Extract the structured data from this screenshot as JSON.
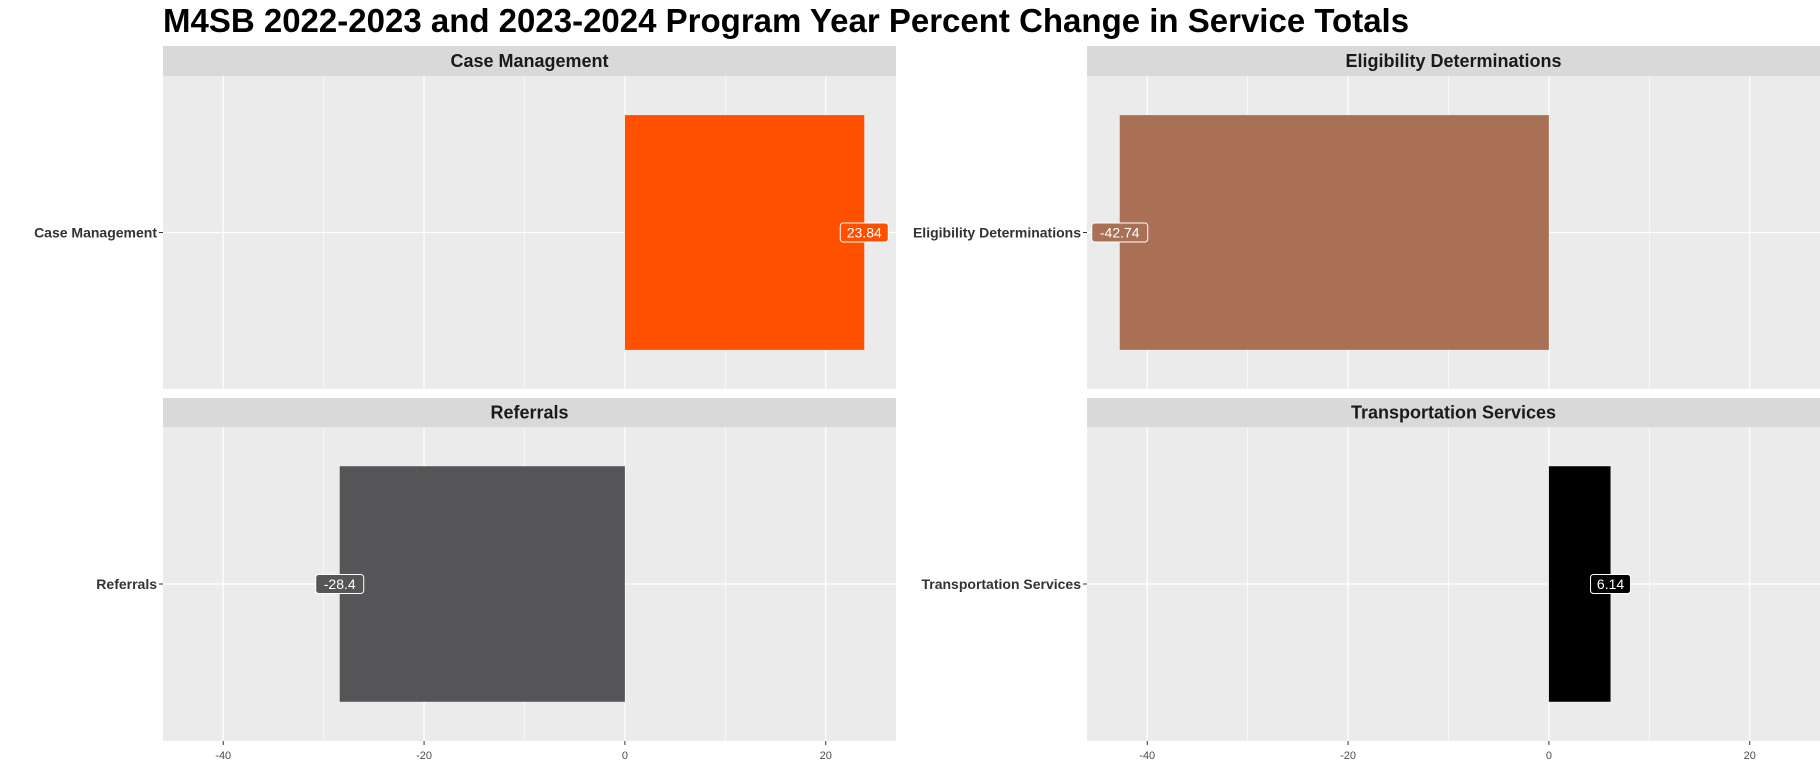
{
  "chart_data": {
    "type": "bar",
    "orientation": "horizontal",
    "title": "M4SB 2022-2023 and 2023-2024 Program Year Percent Change in Service Totals",
    "xlim": [
      -46,
      27
    ],
    "x_ticks": [
      -40,
      -20,
      0,
      20
    ],
    "x_tick_labels": [
      "-40",
      "-20",
      "0",
      "20"
    ],
    "grid": true,
    "legend": "none",
    "panel_background": "#ebebeb",
    "strip_background": "#d9d9d9",
    "panels": [
      {
        "strip": "Case Management",
        "category": "Case Management",
        "value": 23.84,
        "label": "23.84",
        "color": "#ff5000"
      },
      {
        "strip": "Eligibility Determinations",
        "category": "Eligibility Determinations",
        "value": -42.74,
        "label": "-42.74",
        "color": "#a97055"
      },
      {
        "strip": "Referrals",
        "category": "Referrals",
        "value": -28.4,
        "label": "-28.4",
        "color": "#555557"
      },
      {
        "strip": "Transportation Services",
        "category": "Transportation Services",
        "value": 6.14,
        "label": "6.14",
        "color": "#000000"
      }
    ]
  }
}
